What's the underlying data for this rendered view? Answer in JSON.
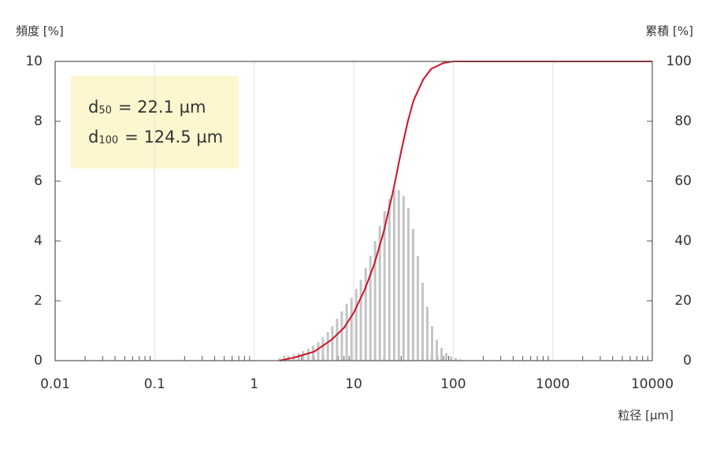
{
  "chart_data": {
    "type": "bar",
    "y_label": "頻度 [%]",
    "y2_label": "累積 [%]",
    "x_label": "粒径 [µm]",
    "log_x": true,
    "grid": true,
    "xlim": [
      0.01,
      10000
    ],
    "xticks": [
      0.01,
      0.1,
      1,
      10,
      100,
      1000,
      10000
    ],
    "ylim": [
      0,
      10
    ],
    "yticks": [
      0,
      2,
      4,
      6,
      8,
      10
    ],
    "y2lim": [
      0,
      100
    ],
    "y2ticks": [
      0,
      20,
      40,
      60,
      80,
      100
    ],
    "annotations": [
      {
        "symbol": "d",
        "subscript": "50",
        "text": "=   22.1 µm"
      },
      {
        "symbol": "d",
        "subscript": "100",
        "text": "= 124.5 µm"
      }
    ],
    "x": [
      1.8,
      2.0,
      2.2,
      2.5,
      2.8,
      3.1,
      3.5,
      3.9,
      4.4,
      4.9,
      5.5,
      6.1,
      6.8,
      7.6,
      8.5,
      9.5,
      10.6,
      11.8,
      13.2,
      14.7,
      16.4,
      18.3,
      20.4,
      22.8,
      25.5,
      28.4,
      31.7,
      35.4,
      39.5,
      44.1,
      49.2,
      54.9,
      61.3,
      68.4,
      76.3,
      85.2,
      95.1,
      106,
      118
    ],
    "series": [
      {
        "color": "#c4c4c4",
        "values": [
          0.08,
          0.12,
          0.16,
          0.2,
          0.25,
          0.32,
          0.4,
          0.5,
          0.62,
          0.78,
          0.95,
          1.15,
          1.4,
          1.65,
          1.9,
          2.1,
          2.4,
          2.7,
          3.1,
          3.5,
          4.0,
          4.5,
          5.0,
          5.4,
          5.7,
          5.7,
          5.5,
          5.1,
          4.4,
          3.5,
          2.6,
          1.8,
          1.15,
          0.7,
          0.42,
          0.25,
          0.14,
          0.08,
          0.04
        ]
      },
      {
        "color": "#d0112b",
        "axis": "y2",
        "kind": "line",
        "x": [
          1.8,
          2.5,
          4,
          6,
          8,
          10,
          13,
          16,
          20,
          25,
          30,
          35,
          40,
          50,
          60,
          80,
          100,
          130,
          10000
        ],
        "values": [
          0,
          1,
          3,
          7,
          11,
          16,
          24,
          32,
          43,
          57,
          70,
          80,
          87,
          94,
          97.5,
          99.5,
          100,
          100,
          100
        ]
      }
    ]
  }
}
